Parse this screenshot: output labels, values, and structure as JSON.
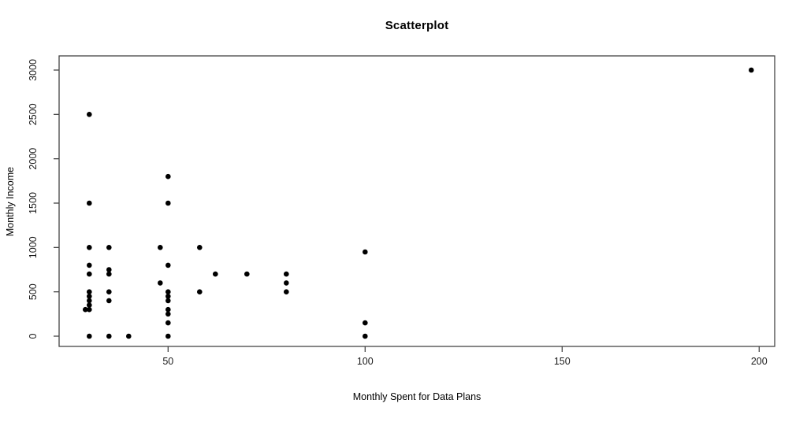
{
  "chart_data": {
    "type": "scatter",
    "title": "Scatterplot",
    "xlabel": "Monthly Spent for Data Plans",
    "ylabel": "Monthly Income",
    "x_ticks": [
      50,
      100,
      150,
      200
    ],
    "y_ticks": [
      0,
      500,
      1000,
      1500,
      2000,
      2500,
      3000
    ],
    "xlim": [
      22,
      204
    ],
    "ylim": [
      0,
      3000
    ],
    "grid": false,
    "legend": null,
    "point_style": "filled-circle",
    "point_color": "#000000",
    "axis_color": "#444444",
    "points": [
      [
        30,
        2500
      ],
      [
        30,
        1500
      ],
      [
        30,
        1000
      ],
      [
        30,
        800
      ],
      [
        30,
        700
      ],
      [
        30,
        500
      ],
      [
        30,
        450
      ],
      [
        30,
        400
      ],
      [
        30,
        350
      ],
      [
        30,
        300
      ],
      [
        29,
        300
      ],
      [
        30,
        0
      ],
      [
        35,
        1000
      ],
      [
        35,
        750
      ],
      [
        35,
        700
      ],
      [
        35,
        500
      ],
      [
        35,
        400
      ],
      [
        35,
        0
      ],
      [
        40,
        0
      ],
      [
        48,
        1000
      ],
      [
        48,
        600
      ],
      [
        50,
        1800
      ],
      [
        50,
        1500
      ],
      [
        50,
        800
      ],
      [
        50,
        500
      ],
      [
        50,
        450
      ],
      [
        50,
        400
      ],
      [
        50,
        300
      ],
      [
        50,
        250
      ],
      [
        50,
        150
      ],
      [
        50,
        0
      ],
      [
        58,
        1000
      ],
      [
        58,
        500
      ],
      [
        62,
        700
      ],
      [
        70,
        700
      ],
      [
        80,
        700
      ],
      [
        80,
        600
      ],
      [
        80,
        500
      ],
      [
        100,
        950
      ],
      [
        100,
        150
      ],
      [
        100,
        0
      ],
      [
        198,
        3000
      ]
    ]
  }
}
